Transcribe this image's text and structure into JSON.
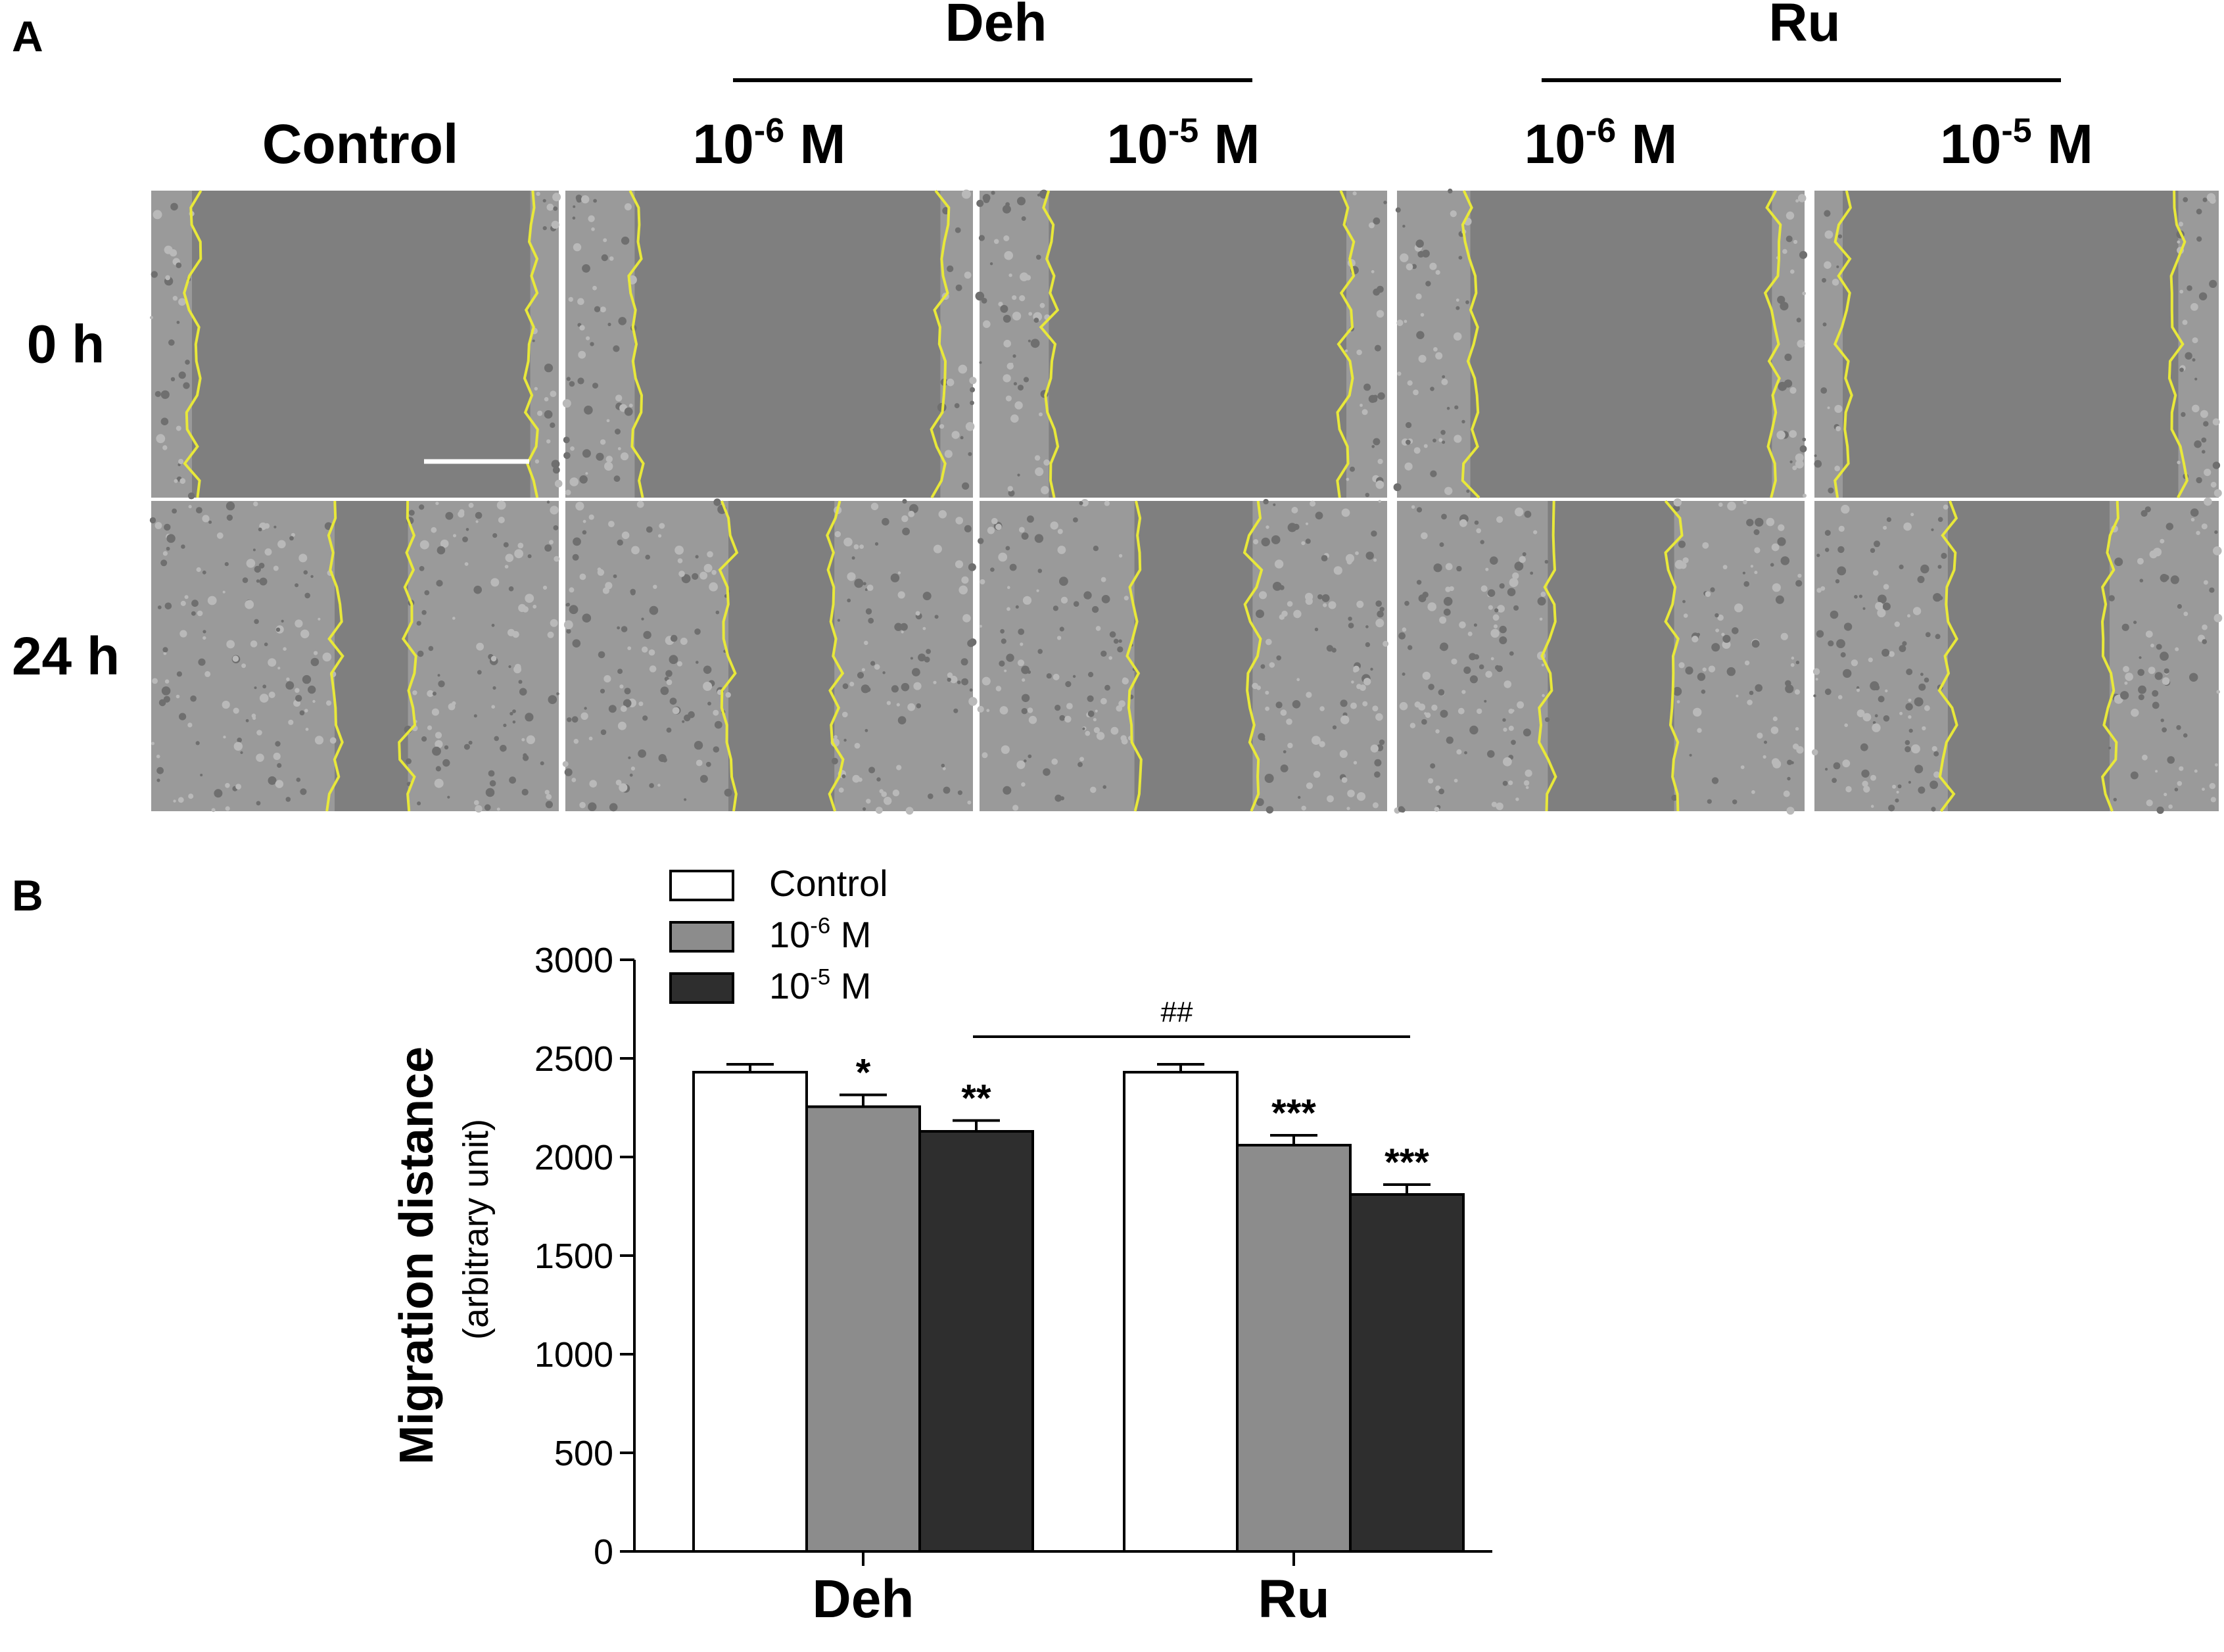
{
  "panel_a": {
    "label": "A",
    "group_labels": [
      "Deh",
      "Ru"
    ],
    "column_labels": [
      {
        "base": "Control",
        "exp": "",
        "unit": ""
      },
      {
        "base": "10",
        "exp": "-6",
        "unit": " M"
      },
      {
        "base": "10",
        "exp": "-5",
        "unit": " M"
      },
      {
        "base": "10",
        "exp": "-6",
        "unit": " M"
      },
      {
        "base": "10",
        "exp": "-5",
        "unit": " M"
      }
    ],
    "row_labels": [
      "0 h",
      "24 h"
    ],
    "colors": {
      "tile_background": "#7f7f7f",
      "cell_texture": "#b9b9b9",
      "wound_edge": "#e8e83a"
    }
  },
  "panel_b": {
    "label": "B",
    "significance_line_label": "##"
  },
  "chart_data": {
    "type": "bar",
    "categories": [
      "Deh",
      "Ru"
    ],
    "series": [
      {
        "name": "Control",
        "exp": "",
        "unit": "",
        "color": "#ffffff",
        "values": [
          2430,
          2430
        ],
        "errors": [
          40,
          40
        ],
        "annotations": [
          "",
          ""
        ]
      },
      {
        "name": "10",
        "exp": "-6",
        "unit": " M",
        "color": "#8c8c8c",
        "values": [
          2255,
          2060
        ],
        "errors": [
          60,
          50
        ],
        "annotations": [
          "*",
          "***"
        ]
      },
      {
        "name": "10",
        "exp": "-5",
        "unit": " M",
        "color": "#2e2e2e",
        "values": [
          2130,
          1810
        ],
        "errors": [
          55,
          50
        ],
        "annotations": [
          "**",
          "***"
        ]
      }
    ],
    "ylabel": "Migration distance",
    "ylabel_sub": "(arbitrary unit)",
    "ylim": [
      0,
      3000
    ],
    "yticks": [
      0,
      500,
      1000,
      1500,
      2000,
      2500,
      3000
    ],
    "legend": "top-left",
    "grid": false
  }
}
